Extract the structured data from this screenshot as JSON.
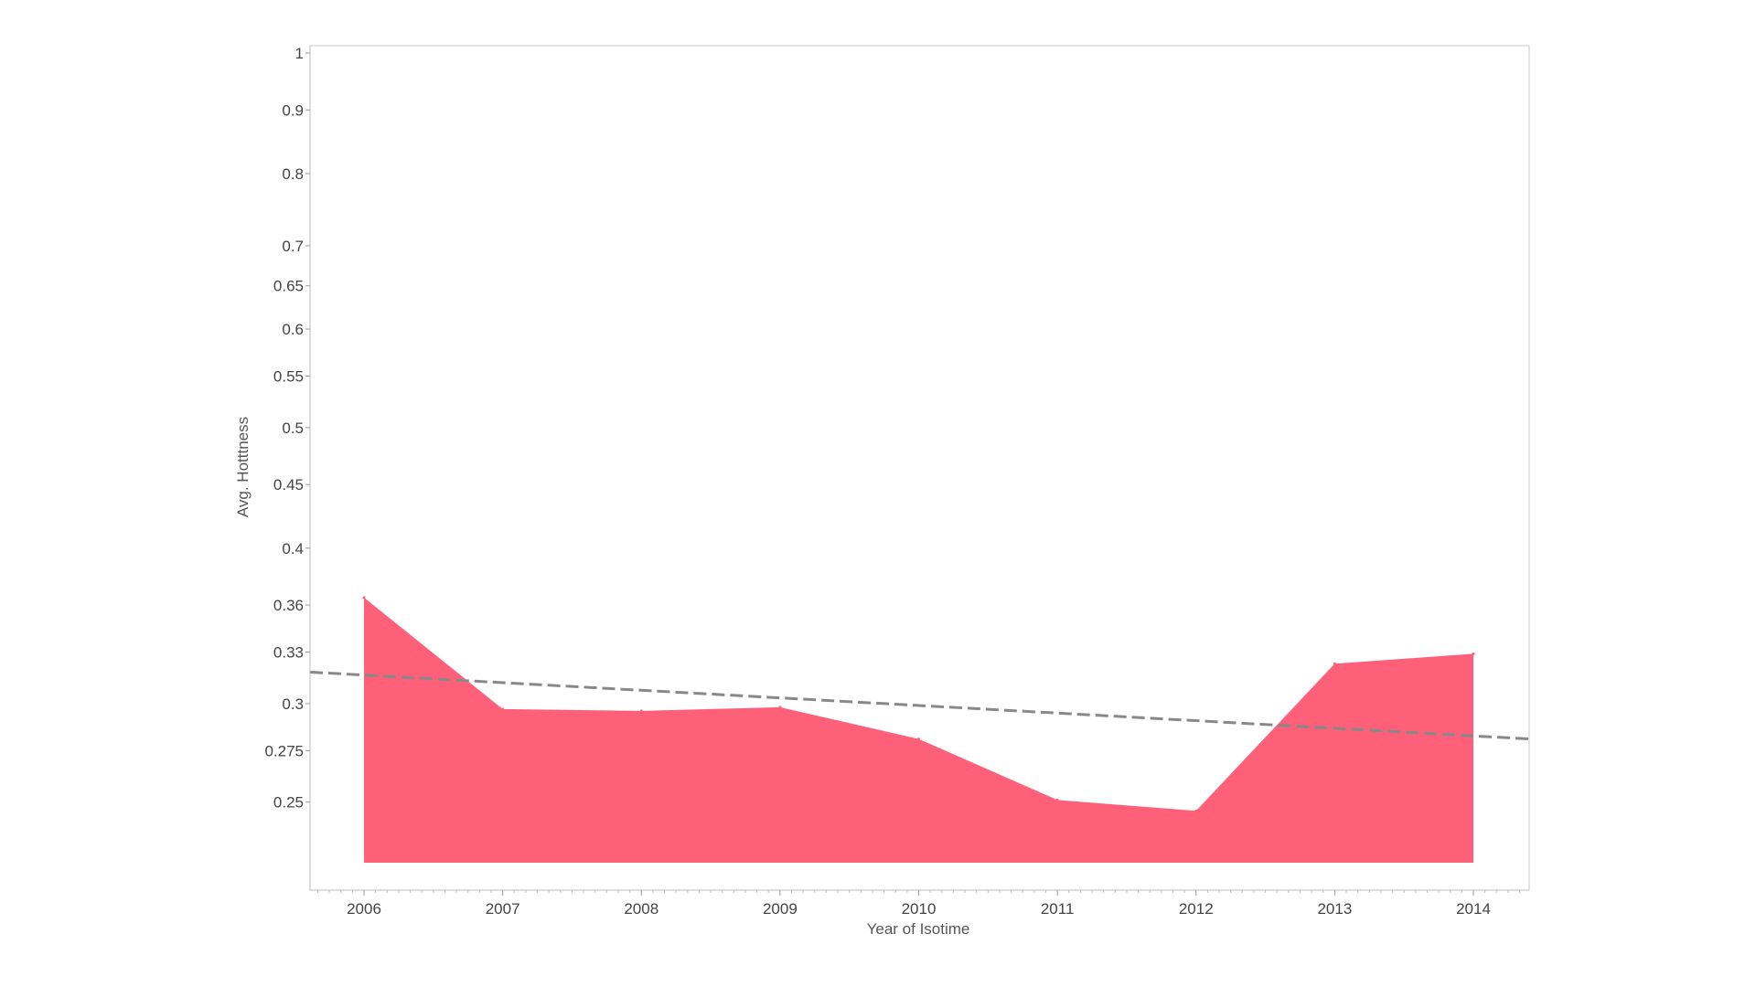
{
  "chart_data": {
    "type": "area",
    "title": "",
    "xlabel": "Year of Isotime",
    "ylabel": "Avg. Hotttness",
    "y_scale": "log",
    "ylim": [
      0.225,
      1.0
    ],
    "grid": false,
    "legend": "none",
    "x": [
      "2006",
      "2007",
      "2008",
      "2009",
      "2010",
      "2011",
      "2012",
      "2013",
      "2014"
    ],
    "series": [
      {
        "values": [
          0.365,
          0.297,
          0.296,
          0.298,
          0.281,
          0.251,
          0.246,
          0.323,
          0.329
        ],
        "color": "#ff6079"
      }
    ],
    "trend_line": {
      "style": "dashed",
      "color": "#888888",
      "start_value": 0.318,
      "end_value": 0.281
    },
    "y_ticks": [
      "1",
      "0.9",
      "0.8",
      "0.7",
      "0.65",
      "0.6",
      "0.55",
      "0.5",
      "0.45",
      "0.4",
      "0.36",
      "0.33",
      "0.3",
      "0.275",
      "0.25"
    ],
    "x_ticks": [
      "2006",
      "2007",
      "2008",
      "2009",
      "2010",
      "2011",
      "2012",
      "2013",
      "2014"
    ]
  }
}
